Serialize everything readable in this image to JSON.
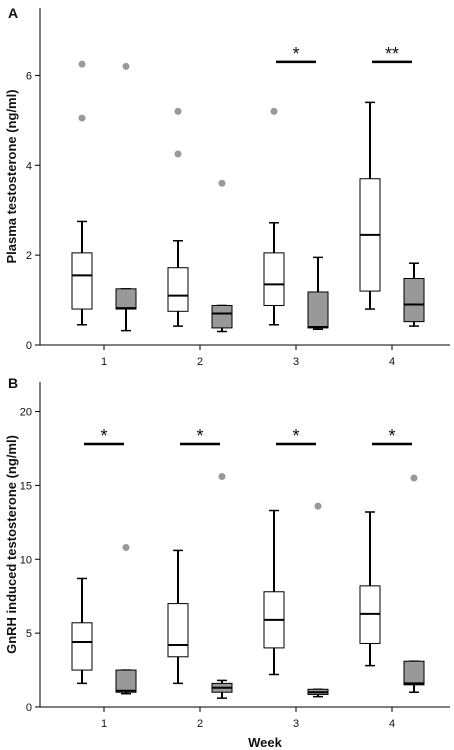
{
  "chart_data": [
    {
      "type": "box",
      "panel_label": "A",
      "ylabel": "Plasma testosterone (ng/ml)",
      "xlabel": "",
      "ylim": [
        0,
        7.5
      ],
      "yticks": [
        0,
        2,
        4,
        6
      ],
      "categories": [
        "1",
        "2",
        "3",
        "4"
      ],
      "series": [
        {
          "fill": "#ffffff",
          "boxes": [
            {
              "min": 0.45,
              "q1": 0.8,
              "median": 1.55,
              "q3": 2.05,
              "max": 2.75,
              "outliers": [
                5.05,
                6.25
              ]
            },
            {
              "min": 0.42,
              "q1": 0.75,
              "median": 1.1,
              "q3": 1.72,
              "max": 2.32,
              "outliers": [
                4.25,
                5.2
              ]
            },
            {
              "min": 0.45,
              "q1": 0.88,
              "median": 1.35,
              "q3": 2.05,
              "max": 2.72,
              "outliers": [
                5.2
              ]
            },
            {
              "min": 0.8,
              "q1": 1.2,
              "median": 2.45,
              "q3": 3.7,
              "max": 5.4,
              "outliers": []
            }
          ]
        },
        {
          "fill": "#999999",
          "boxes": [
            {
              "min": 0.32,
              "q1": 0.8,
              "median": 0.82,
              "q3": 1.25,
              "max": 1.25,
              "outliers": [
                6.2
              ]
            },
            {
              "min": 0.3,
              "q1": 0.38,
              "median": 0.7,
              "q3": 0.88,
              "max": 0.88,
              "outliers": [
                3.6
              ]
            },
            {
              "min": 0.35,
              "q1": 0.38,
              "median": 0.4,
              "q3": 1.18,
              "max": 1.95,
              "outliers": []
            },
            {
              "min": 0.42,
              "q1": 0.52,
              "median": 0.9,
              "q3": 1.48,
              "max": 1.82,
              "outliers": []
            }
          ]
        }
      ],
      "significance": [
        {
          "category": "3",
          "label": "*",
          "y": 6.3
        },
        {
          "category": "4",
          "label": "**",
          "y": 6.3
        }
      ]
    },
    {
      "type": "box",
      "panel_label": "B",
      "ylabel": "GnRH induced testosterone (ng/ml)",
      "xlabel": "Week",
      "ylim": [
        0,
        22
      ],
      "yticks": [
        0,
        5,
        10,
        15,
        20
      ],
      "categories": [
        "1",
        "2",
        "3",
        "4"
      ],
      "series": [
        {
          "fill": "#ffffff",
          "boxes": [
            {
              "min": 1.6,
              "q1": 2.5,
              "median": 4.4,
              "q3": 5.7,
              "max": 8.7,
              "outliers": []
            },
            {
              "min": 1.6,
              "q1": 3.4,
              "median": 4.2,
              "q3": 7.0,
              "max": 10.6,
              "outliers": []
            },
            {
              "min": 2.2,
              "q1": 4.0,
              "median": 5.9,
              "q3": 7.8,
              "max": 13.3,
              "outliers": []
            },
            {
              "min": 2.8,
              "q1": 4.3,
              "median": 6.3,
              "q3": 8.2,
              "max": 13.2,
              "outliers": []
            }
          ]
        },
        {
          "fill": "#999999",
          "boxes": [
            {
              "min": 0.9,
              "q1": 1.0,
              "median": 1.1,
              "q3": 2.5,
              "max": 2.5,
              "outliers": [
                10.8
              ]
            },
            {
              "min": 0.6,
              "q1": 1.0,
              "median": 1.3,
              "q3": 1.6,
              "max": 1.8,
              "outliers": [
                15.6
              ]
            },
            {
              "min": 0.7,
              "q1": 0.85,
              "median": 1.0,
              "q3": 1.2,
              "max": 1.2,
              "outliers": [
                13.6
              ]
            },
            {
              "min": 1.0,
              "q1": 1.5,
              "median": 1.6,
              "q3": 3.1,
              "max": 3.1,
              "outliers": [
                15.5
              ]
            }
          ]
        }
      ],
      "significance": [
        {
          "category": "1",
          "label": "*",
          "y": 17.8
        },
        {
          "category": "2",
          "label": "*",
          "y": 17.8
        },
        {
          "category": "3",
          "label": "*",
          "y": 17.8
        },
        {
          "category": "4",
          "label": "*",
          "y": 17.8
        }
      ]
    }
  ]
}
